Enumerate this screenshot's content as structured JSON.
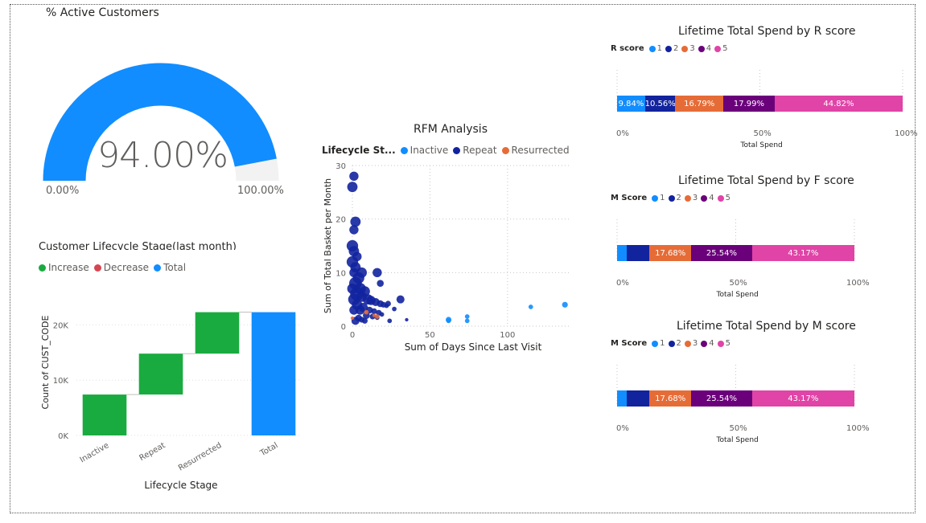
{
  "gauge": {
    "title": "% Active Customers",
    "value_label": "94.00%",
    "value_fraction": 0.94,
    "min_label": "0.00%",
    "max_label": "100.00%",
    "fill_color": "#118DFF",
    "track_color": "#F2F2F2"
  },
  "lifecycle": {
    "title": "Customer Lifecycle Stage(last month)",
    "legend": [
      {
        "label": "Increase",
        "color": "#1AAB40"
      },
      {
        "label": "Decrease",
        "color": "#D64550"
      },
      {
        "label": "Total",
        "color": "#118DFF"
      }
    ],
    "chart_data": {
      "type": "bar",
      "subtype": "waterfall",
      "categories": [
        "Inactive",
        "Repeat",
        "Resurrected",
        "Total"
      ],
      "values": [
        7400,
        7400,
        7500,
        22300
      ],
      "kinds": [
        "increase",
        "increase",
        "increase",
        "total"
      ],
      "yticks": [
        "0K",
        "10K",
        "20K"
      ],
      "ytick_values": [
        0,
        10000,
        20000
      ],
      "ylim": [
        0,
        25000
      ],
      "xlabel": "Lifecycle Stage",
      "ylabel": "Count of CUST_CODE"
    }
  },
  "rfm": {
    "title": "RFM Analysis",
    "legend_title": "Lifecycle St...",
    "legend": [
      {
        "label": "Inactive",
        "color": "#118DFF"
      },
      {
        "label": "Repeat",
        "color": "#12239E"
      },
      {
        "label": "Resurrected",
        "color": "#E66C37"
      }
    ],
    "chart_data": {
      "type": "scatter",
      "xlabel": "Sum of Days Since Last Visit",
      "ylabel": "Sum of Total Basket per Month",
      "xlim": [
        0,
        140
      ],
      "ylim": [
        0,
        30
      ],
      "xticks": [
        "0",
        "50",
        "100"
      ],
      "xtick_values": [
        0,
        50,
        100
      ],
      "yticks": [
        "0",
        "10",
        "20",
        "30"
      ],
      "ytick_values": [
        0,
        10,
        20,
        30
      ],
      "series": [
        {
          "name": "Repeat",
          "color": "#12239E",
          "points": [
            [
              1,
              28,
              8
            ],
            [
              0,
              26,
              9
            ],
            [
              2,
              19.5,
              9
            ],
            [
              1,
              18,
              8
            ],
            [
              0,
              15,
              10
            ],
            [
              1,
              14,
              9
            ],
            [
              3,
              13,
              8
            ],
            [
              0,
              12,
              10
            ],
            [
              2,
              11,
              9
            ],
            [
              6,
              10,
              9
            ],
            [
              1,
              10,
              8
            ],
            [
              4,
              9,
              10
            ],
            [
              2,
              8,
              11
            ],
            [
              5,
              7,
              10
            ],
            [
              8,
              6.5,
              9
            ],
            [
              3,
              6,
              12
            ],
            [
              6,
              5.5,
              9
            ],
            [
              10,
              5,
              9
            ],
            [
              12,
              4.8,
              8
            ],
            [
              15,
              4.5,
              7
            ],
            [
              18,
              4.2,
              6
            ],
            [
              20,
              4,
              5
            ],
            [
              22,
              3.8,
              4
            ],
            [
              7,
              3.5,
              8
            ],
            [
              11,
              3,
              6
            ],
            [
              14,
              2.8,
              5
            ],
            [
              17,
              2.5,
              5
            ],
            [
              19,
              2.2,
              4
            ],
            [
              9,
              2,
              6
            ],
            [
              13,
              1.8,
              5
            ],
            [
              16,
              1.6,
              4
            ],
            [
              4,
              1.5,
              6
            ],
            [
              6,
              1.2,
              5
            ],
            [
              2,
              1,
              7
            ],
            [
              8,
              1,
              5
            ],
            [
              24,
              1,
              4
            ],
            [
              27,
              3.2,
              4
            ],
            [
              31,
              5,
              7
            ],
            [
              35,
              1.2,
              3
            ],
            [
              16,
              10,
              8
            ],
            [
              18,
              8,
              6
            ],
            [
              23,
              4.2,
              5
            ],
            [
              1,
              5,
              10
            ],
            [
              3,
              4,
              9
            ],
            [
              5,
              3,
              8
            ],
            [
              0,
              7,
              9
            ],
            [
              1,
              3,
              8
            ]
          ]
        },
        {
          "name": "Inactive",
          "color": "#118DFF",
          "points": [
            [
              62,
              1.2,
              5
            ],
            [
              62,
              1,
              4
            ],
            [
              74,
              1.8,
              4
            ],
            [
              74,
              1,
              4
            ],
            [
              115,
              3.6,
              4
            ],
            [
              137,
              4,
              5
            ]
          ]
        },
        {
          "name": "Resurrected",
          "color": "#E66C37",
          "points": [
            [
              9,
              2.6,
              4
            ],
            [
              16,
              1.8,
              4
            ],
            [
              0,
              1.5,
              3
            ],
            [
              14,
              2,
              3
            ]
          ]
        }
      ]
    }
  },
  "spend_r": {
    "title": "Lifetime Total Spend by R score",
    "legend_title": "R score",
    "legend": [
      {
        "label": "1",
        "color": "#118DFF"
      },
      {
        "label": "2",
        "color": "#12239E"
      },
      {
        "label": "3",
        "color": "#E66C37"
      },
      {
        "label": "4",
        "color": "#6B007B"
      },
      {
        "label": "5",
        "color": "#E044A7"
      }
    ],
    "chart_data": {
      "type": "bar",
      "subtype": "100%-stacked",
      "series": [
        {
          "name": "1",
          "value": 9.84,
          "label": "9.84%"
        },
        {
          "name": "2",
          "value": 10.56,
          "label": "10.56%"
        },
        {
          "name": "3",
          "value": 16.79,
          "label": "16.79%"
        },
        {
          "name": "4",
          "value": 17.99,
          "label": "17.99%"
        },
        {
          "name": "5",
          "value": 44.82,
          "label": "44.82%"
        }
      ],
      "xticks": [
        "0%",
        "50%",
        "100%"
      ],
      "xlabel": "Total Spend"
    }
  },
  "spend_f": {
    "title": "Lifetime Total Spend by F score",
    "legend_title": "M Score",
    "legend": [
      {
        "label": "1",
        "color": "#118DFF"
      },
      {
        "label": "2",
        "color": "#12239E"
      },
      {
        "label": "3",
        "color": "#E66C37"
      },
      {
        "label": "4",
        "color": "#6B007B"
      },
      {
        "label": "5",
        "color": "#E044A7"
      }
    ],
    "chart_data": {
      "type": "bar",
      "subtype": "100%-stacked",
      "series": [
        {
          "name": "1",
          "value": 4.1,
          "label": ""
        },
        {
          "name": "2",
          "value": 9.51,
          "label": ""
        },
        {
          "name": "3",
          "value": 17.68,
          "label": "17.68%"
        },
        {
          "name": "4",
          "value": 25.54,
          "label": "25.54%"
        },
        {
          "name": "5",
          "value": 43.17,
          "label": "43.17%"
        }
      ],
      "xticks": [
        "0%",
        "50%",
        "100%"
      ],
      "xlabel": "Total Spend"
    }
  },
  "spend_m": {
    "title": "Lifetime Total Spend by M score",
    "legend_title": "M Score",
    "legend": [
      {
        "label": "1",
        "color": "#118DFF"
      },
      {
        "label": "2",
        "color": "#12239E"
      },
      {
        "label": "3",
        "color": "#E66C37"
      },
      {
        "label": "4",
        "color": "#6B007B"
      },
      {
        "label": "5",
        "color": "#E044A7"
      }
    ],
    "chart_data": {
      "type": "bar",
      "subtype": "100%-stacked",
      "series": [
        {
          "name": "1",
          "value": 4.1,
          "label": ""
        },
        {
          "name": "2",
          "value": 9.51,
          "label": ""
        },
        {
          "name": "3",
          "value": 17.68,
          "label": "17.68%"
        },
        {
          "name": "4",
          "value": 25.54,
          "label": "25.54%"
        },
        {
          "name": "5",
          "value": 43.17,
          "label": "43.17%"
        }
      ],
      "xticks": [
        "0%",
        "50%",
        "100%"
      ],
      "xlabel": "Total Spend"
    }
  }
}
